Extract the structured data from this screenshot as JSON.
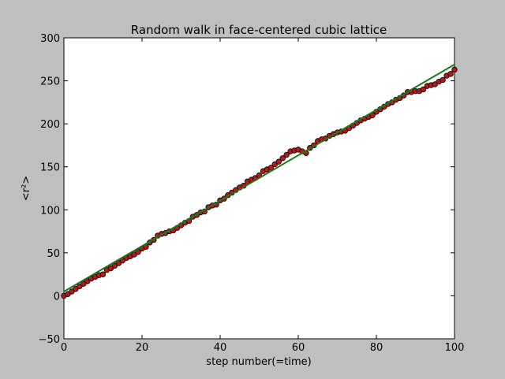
{
  "chart_data": {
    "type": "scatter",
    "title": "Random walk in face-centered cubic lattice",
    "xlabel": "step number(=time)",
    "ylabel": "<r²>",
    "xlim": [
      0,
      100
    ],
    "ylim": [
      -50,
      300
    ],
    "xticks": [
      0,
      20,
      40,
      60,
      80,
      100
    ],
    "yticks": [
      -50,
      0,
      50,
      100,
      150,
      200,
      250,
      300
    ],
    "grid": false,
    "legend": "none",
    "series": [
      {
        "kind": "points",
        "color": "#b31b1b",
        "x": [
          0,
          1,
          2,
          3,
          4,
          5,
          6,
          7,
          8,
          9,
          10,
          11,
          12,
          13,
          14,
          15,
          16,
          17,
          18,
          19,
          20,
          21,
          22,
          23,
          24,
          25,
          26,
          27,
          28,
          29,
          30,
          31,
          32,
          33,
          34,
          35,
          36,
          37,
          38,
          39,
          40,
          41,
          42,
          43,
          44,
          45,
          46,
          47,
          48,
          49,
          50,
          51,
          52,
          53,
          54,
          55,
          56,
          57,
          58,
          59,
          60,
          61,
          62,
          63,
          64,
          65,
          66,
          67,
          68,
          69,
          70,
          71,
          72,
          73,
          74,
          75,
          76,
          77,
          78,
          79,
          80,
          81,
          82,
          83,
          84,
          85,
          86,
          87,
          88,
          89,
          90,
          91,
          92,
          93,
          94,
          95,
          96,
          97,
          98,
          99,
          100
        ],
        "y": [
          0,
          2,
          5,
          8,
          11,
          14,
          17,
          20,
          22,
          24,
          25,
          30,
          32,
          35,
          38,
          41,
          44,
          46,
          48,
          51,
          55,
          57,
          62,
          65,
          70,
          72,
          73,
          75,
          76,
          79,
          82,
          85,
          87,
          92,
          94,
          97,
          98,
          103,
          105,
          106,
          111,
          113,
          117,
          120,
          123,
          126,
          128,
          133,
          135,
          137,
          140,
          145,
          147,
          149,
          153,
          156,
          160,
          164,
          168,
          169,
          170,
          168,
          166,
          172,
          175,
          180,
          182,
          183,
          186,
          188,
          190,
          191,
          192,
          195,
          198,
          201,
          204,
          206,
          208,
          210,
          214,
          217,
          220,
          223,
          225,
          228,
          230,
          233,
          237,
          237,
          238,
          238,
          240,
          244,
          245,
          246,
          249,
          251,
          256,
          258,
          263
        ]
      },
      {
        "kind": "fit-line",
        "color": "#1a7a1a",
        "x": [
          0,
          100
        ],
        "y": [
          5,
          269
        ]
      }
    ]
  }
}
